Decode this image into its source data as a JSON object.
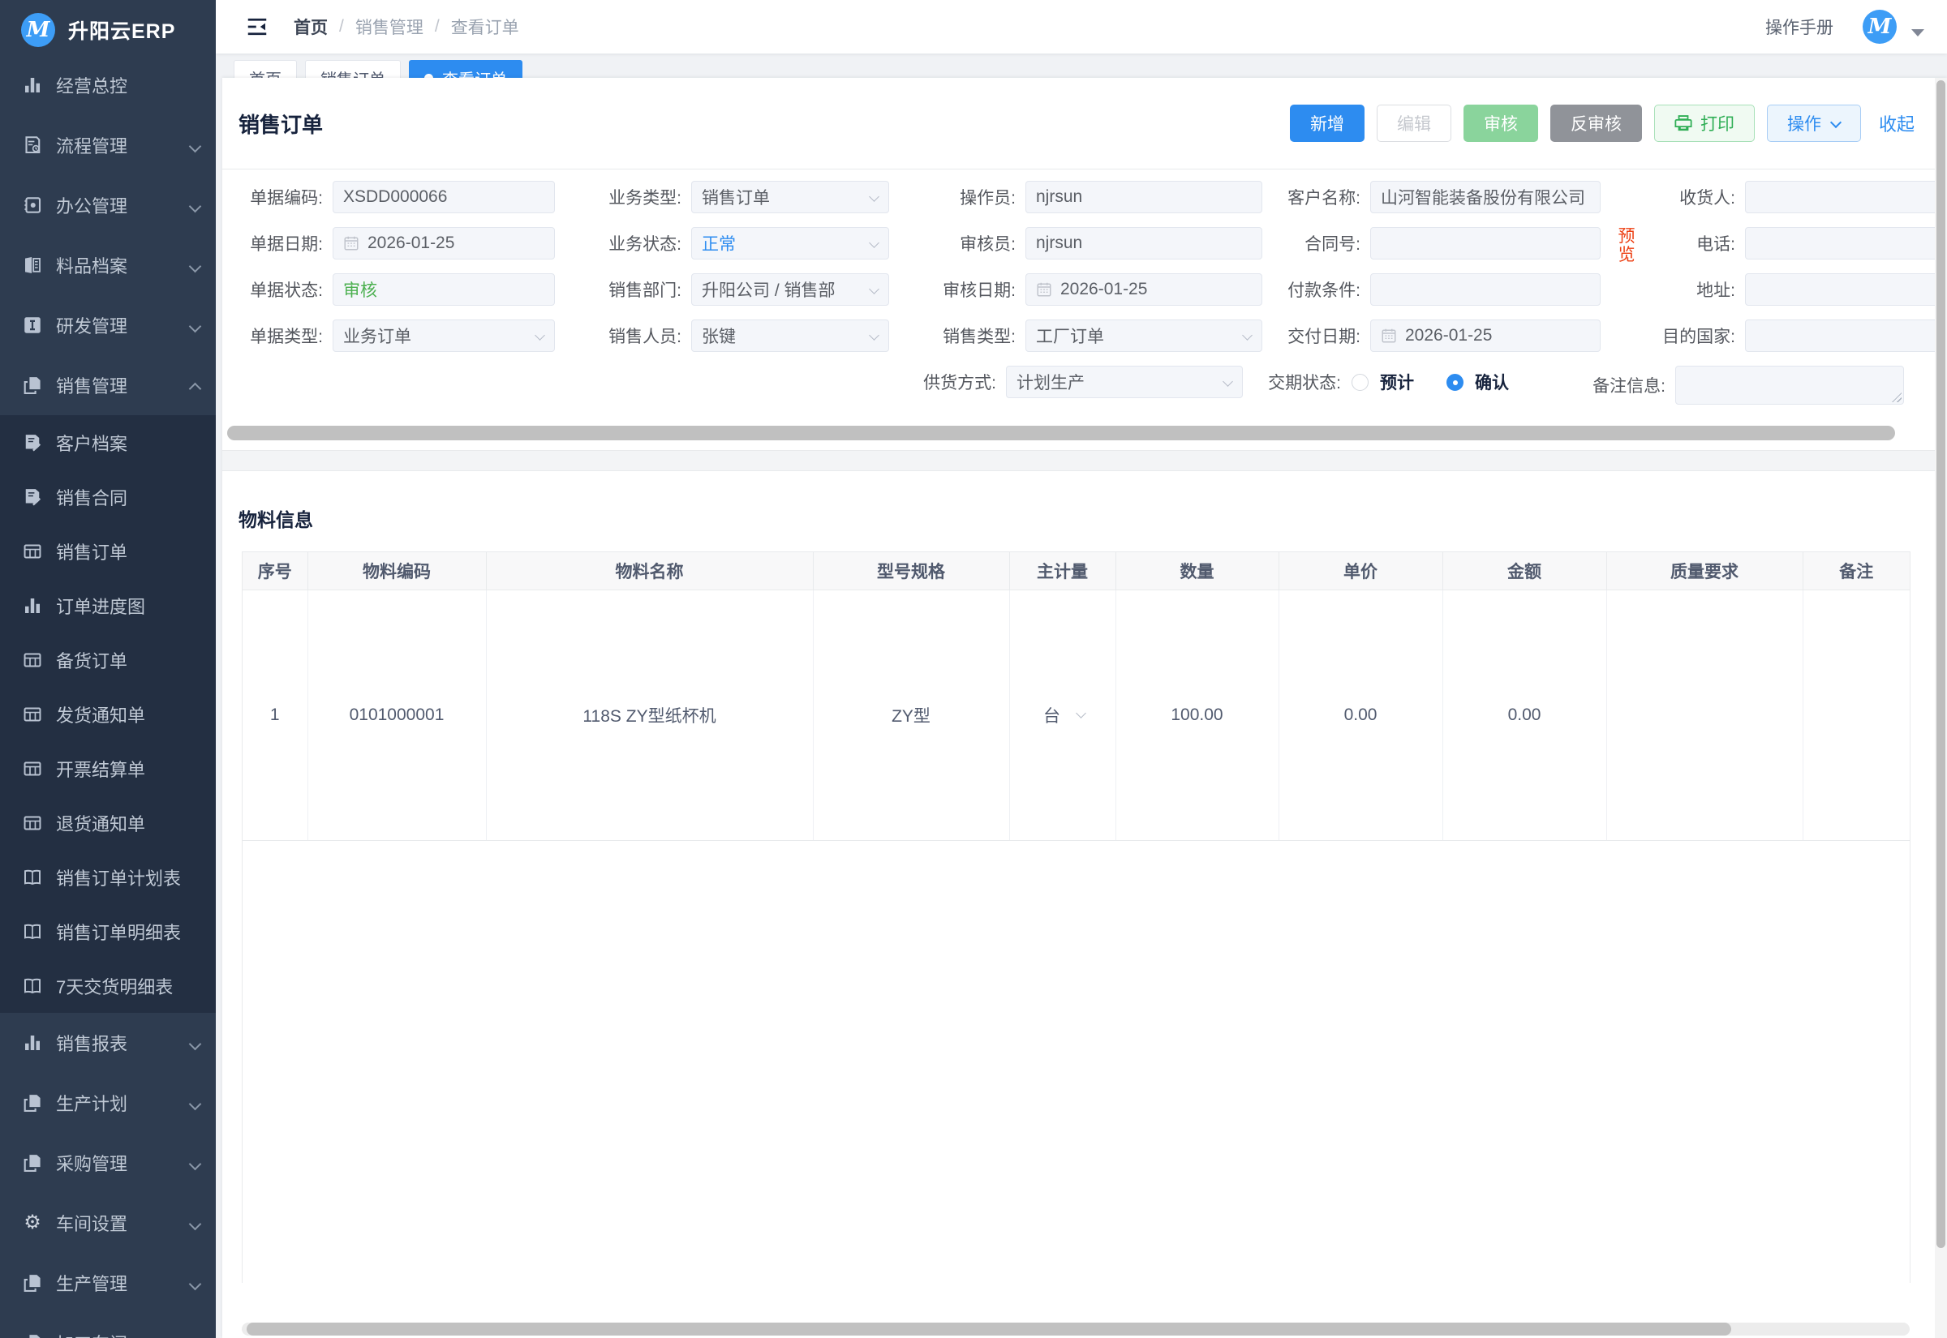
{
  "app": {
    "name": "升阳云ERP"
  },
  "colors": {
    "primary": "#2d8cf0",
    "success_button": "#8ad49c",
    "gray_button": "#909399",
    "print_green": "#2fae55",
    "danger_link": "#ed4014",
    "sidebar_bg": "#2e3c50",
    "submenu_bg": "#232f42",
    "status_green_text": "#4cb050",
    "status_blue_text": "#2d8cf0"
  },
  "topbar": {
    "breadcrumb": [
      {
        "label": "首页"
      },
      {
        "label": "销售管理"
      },
      {
        "label": "查看订单"
      }
    ],
    "manual_label": "操作手册"
  },
  "tabs": [
    {
      "label": "首页",
      "active": false
    },
    {
      "label": "销售订单",
      "active": false
    },
    {
      "label": "查看订单",
      "active": true
    }
  ],
  "sidebar": {
    "items": [
      {
        "label": "经营总控",
        "icon": "chart-bar",
        "arrow": null
      },
      {
        "label": "流程管理",
        "icon": "doc-flow",
        "arrow": "down"
      },
      {
        "label": "办公管理",
        "icon": "office",
        "arrow": "down"
      },
      {
        "label": "料品档案",
        "icon": "materials",
        "arrow": "down"
      },
      {
        "label": "研发管理",
        "icon": "rnd",
        "arrow": "down"
      },
      {
        "label": "销售管理",
        "icon": "pages",
        "arrow": "up",
        "children": [
          {
            "label": "客户档案",
            "icon": "doc-edit"
          },
          {
            "label": "销售合同",
            "icon": "doc-edit"
          },
          {
            "label": "销售订单",
            "icon": "grid"
          },
          {
            "label": "订单进度图",
            "icon": "chart-bar"
          },
          {
            "label": "备货订单",
            "icon": "grid"
          },
          {
            "label": "发货通知单",
            "icon": "grid"
          },
          {
            "label": "开票结算单",
            "icon": "grid"
          },
          {
            "label": "退货通知单",
            "icon": "grid"
          },
          {
            "label": "销售订单计划表",
            "icon": "open-book"
          },
          {
            "label": "销售订单明细表",
            "icon": "open-book"
          },
          {
            "label": "7天交货明细表",
            "icon": "open-book"
          }
        ]
      },
      {
        "label": "销售报表",
        "icon": "chart-bar",
        "arrow": "down"
      },
      {
        "label": "生产计划",
        "icon": "pages",
        "arrow": "down"
      },
      {
        "label": "采购管理",
        "icon": "pages",
        "arrow": "down"
      },
      {
        "label": "车间设置",
        "icon": "gear",
        "arrow": "down"
      },
      {
        "label": "生产管理",
        "icon": "pages",
        "arrow": "down"
      },
      {
        "label": "加工车间",
        "icon": "pages",
        "arrow": "down"
      }
    ]
  },
  "panel": {
    "title": "销售订单",
    "toolbar": {
      "add": "新增",
      "edit": "编辑",
      "audit": "审核",
      "unaudit": "反审核",
      "print": "打印",
      "actions": "操作",
      "collapse": "收起"
    },
    "form": {
      "preview_link": "预览",
      "fields": [
        {
          "row": 1,
          "col": 1,
          "key": "bill_code",
          "label": "单据编码:",
          "type": "input",
          "value": "XSDD000066"
        },
        {
          "row": 1,
          "col": 2,
          "key": "biz_type",
          "label": "业务类型:",
          "type": "select",
          "value": "销售订单"
        },
        {
          "row": 1,
          "col": 3,
          "key": "operator",
          "label": "操作员:",
          "type": "input",
          "value": "njrsun"
        },
        {
          "row": 1,
          "col": 4,
          "key": "customer",
          "label": "客户名称:",
          "type": "input",
          "value": "山河智能装备股份有限公司"
        },
        {
          "row": 1,
          "col": 5,
          "key": "receiver",
          "label": "收货人:",
          "type": "input",
          "value": ""
        },
        {
          "row": 2,
          "col": 1,
          "key": "bill_date",
          "label": "单据日期:",
          "type": "date",
          "value": "2026-01-25"
        },
        {
          "row": 2,
          "col": 2,
          "key": "biz_status",
          "label": "业务状态:",
          "type": "select",
          "value": "正常",
          "valueClass": "blue"
        },
        {
          "row": 2,
          "col": 3,
          "key": "auditor",
          "label": "审核员:",
          "type": "input",
          "value": "njrsun"
        },
        {
          "row": 2,
          "col": 4,
          "key": "contract_no",
          "label": "合同号:",
          "type": "input",
          "value": "",
          "suffix": "preview"
        },
        {
          "row": 2,
          "col": 5,
          "key": "phone",
          "label": "电话:",
          "type": "input",
          "value": ""
        },
        {
          "row": 3,
          "col": 1,
          "key": "bill_status",
          "label": "单据状态:",
          "type": "input",
          "value": "审核",
          "valueClass": "green"
        },
        {
          "row": 3,
          "col": 2,
          "key": "sales_dept",
          "label": "销售部门:",
          "type": "select",
          "value": "升阳公司 / 销售部"
        },
        {
          "row": 3,
          "col": 3,
          "key": "audit_date",
          "label": "审核日期:",
          "type": "date",
          "value": "2026-01-25"
        },
        {
          "row": 3,
          "col": 4,
          "key": "payment_terms",
          "label": "付款条件:",
          "type": "input",
          "value": ""
        },
        {
          "row": 3,
          "col": 5,
          "key": "address",
          "label": "地址:",
          "type": "input",
          "value": ""
        },
        {
          "row": 4,
          "col": 1,
          "key": "bill_type",
          "label": "单据类型:",
          "type": "select",
          "value": "业务订单"
        },
        {
          "row": 4,
          "col": 2,
          "key": "sales_person",
          "label": "销售人员:",
          "type": "select",
          "value": "张键"
        },
        {
          "row": 4,
          "col": 3,
          "key": "sales_type",
          "label": "销售类型:",
          "type": "select",
          "value": "工厂订单"
        },
        {
          "row": 4,
          "col": 4,
          "key": "delivery_date",
          "label": "交付日期:",
          "type": "date",
          "value": "2026-01-25"
        },
        {
          "row": 4,
          "col": 5,
          "key": "dest_country",
          "label": "目的国家:",
          "type": "input",
          "value": ""
        },
        {
          "row": 5,
          "col": 3,
          "key": "supply_mode",
          "label": "供货方式:",
          "type": "select",
          "value": "计划生产"
        },
        {
          "row": 5,
          "col": 4,
          "key": "delivery_status",
          "label": "交期状态:",
          "type": "radio",
          "options": [
            {
              "label": "预计",
              "checked": false
            },
            {
              "label": "确认",
              "checked": true
            }
          ]
        },
        {
          "row": 5,
          "col": 5,
          "key": "remark",
          "label": "备注信息:",
          "type": "textarea",
          "value": ""
        }
      ]
    },
    "materials": {
      "title": "物料信息",
      "table": {
        "headers": [
          "序号",
          "物料编码",
          "物料名称",
          "型号规格",
          "主计量",
          "数量",
          "单价",
          "金额",
          "质量要求",
          "备注"
        ],
        "rows": [
          {
            "seq": "1",
            "code": "0101000001",
            "name": "118S ZY型纸杯机",
            "spec": "ZY型",
            "unit": "台",
            "qty": "100.00",
            "price": "0.00",
            "amount": "0.00",
            "quality": "",
            "remark": ""
          }
        ]
      }
    }
  }
}
